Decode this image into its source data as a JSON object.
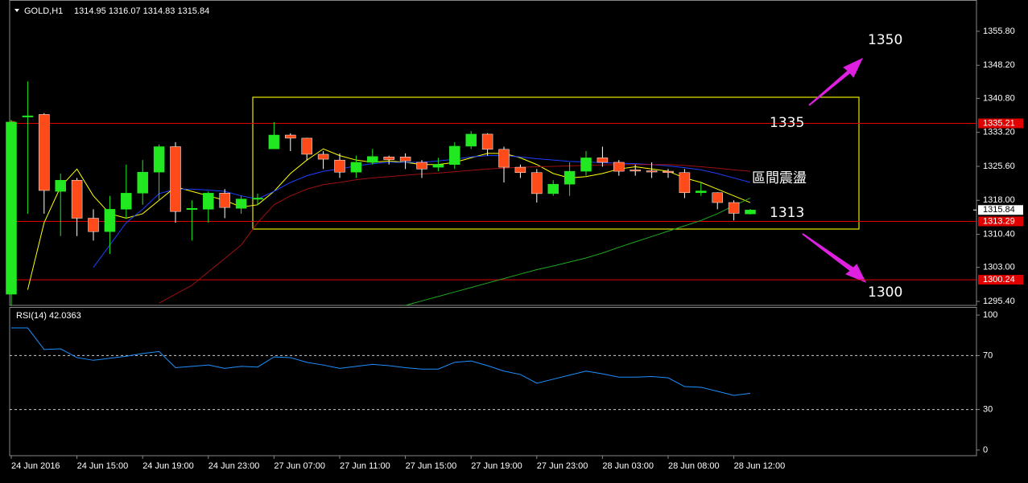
{
  "chart_data": [
    {
      "type": "candlestick",
      "title": "GOLD,H1",
      "subtitle": "1314.95 1316.07 1314.83 1315.84",
      "categories": [
        "24 Jun 2016",
        null,
        null,
        null,
        "24 Jun 15:00",
        null,
        null,
        null,
        "24 Jun 19:00",
        null,
        null,
        null,
        "24 Jun 23:00",
        null,
        null,
        null,
        "27 Jun 07:00",
        null,
        null,
        null,
        "27 Jun 11:00",
        null,
        null,
        null,
        "27 Jun 15:00",
        null,
        null,
        null,
        "27 Jun 19:00",
        null,
        null,
        null,
        "27 Jun 23:00",
        null,
        null,
        null,
        "28 Jun 03:00",
        null,
        null,
        null,
        "28 Jun 08:00",
        null,
        null,
        null,
        "28 Jun 12:00",
        null
      ],
      "open": [
        1297,
        1336.8,
        1337.2,
        1320,
        1322.5,
        1314,
        1311,
        1316,
        1319.6,
        1324.3,
        1330,
        1316,
        1316,
        1319.6,
        1316.2,
        1318.3,
        1329.5,
        1332.6,
        1331.9,
        1328.3,
        1327,
        1324.3,
        1326.5,
        1327.7,
        1327.7,
        1326.5,
        1325.4,
        1326,
        1330.1,
        1332.8,
        1329.4,
        1325.4,
        1324.2,
        1319.5,
        1321.6,
        1324.5,
        1327.5,
        1326.5,
        1324.8,
        1324.6,
        1324.5,
        1324.2,
        1319.7,
        1319.7,
        1317.5,
        1314.95
      ],
      "high": [
        1336,
        1344.6,
        1337.5,
        1324,
        1323,
        1316,
        1319,
        1326,
        1327,
        1330.5,
        1331,
        1318,
        1320,
        1320.5,
        1319,
        1319.5,
        1335.5,
        1333,
        1332,
        1329,
        1328.5,
        1328,
        1329.5,
        1328,
        1328.5,
        1327,
        1327.5,
        1331,
        1333.5,
        1333,
        1330,
        1326,
        1325,
        1322.5,
        1326.5,
        1329,
        1330,
        1327,
        1326,
        1326.5,
        1325,
        1325,
        1322,
        1319.8,
        1318,
        1316.07
      ],
      "low": [
        1294.5,
        1315,
        1315,
        1310,
        1310,
        1309,
        1306,
        1314,
        1317,
        1318,
        1313,
        1309,
        1313,
        1314,
        1315,
        1317,
        1329.5,
        1329,
        1327,
        1325,
        1323,
        1323,
        1326,
        1326,
        1325,
        1323,
        1324.5,
        1325,
        1329.5,
        1328,
        1322,
        1323,
        1317.5,
        1319,
        1319,
        1323.5,
        1325.5,
        1323.5,
        1323.5,
        1323,
        1323,
        1318.5,
        1319,
        1316,
        1313.5,
        1314.83
      ],
      "close": [
        1335.5,
        1336.9,
        1320.2,
        1322.5,
        1314,
        1311,
        1316,
        1319.6,
        1324.3,
        1330,
        1315.5,
        1316.2,
        1319.6,
        1316.4,
        1318.3,
        1318.5,
        1332.6,
        1331.9,
        1328.3,
        1327.2,
        1324.3,
        1326.5,
        1327.8,
        1327.1,
        1326.8,
        1325,
        1326,
        1330.1,
        1332.8,
        1329.4,
        1325.4,
        1324.2,
        1319.5,
        1321.6,
        1324.5,
        1327.5,
        1326.5,
        1324.5,
        1324.6,
        1324.5,
        1324.2,
        1319.7,
        1320.1,
        1317.5,
        1315.1,
        1315.84
      ],
      "up_color": "#22e822",
      "down_color": "#ff4a1a",
      "series": [
        {
          "color": "#ffff00",
          "values": [
            null,
            1298,
            1313,
            1321,
            1325,
            1319,
            1315,
            1314,
            1315,
            1318,
            1321,
            1320,
            1319,
            1318,
            1316.5,
            1317,
            1320,
            1324,
            1327,
            1329.5,
            1328,
            1327,
            1326.5,
            1326.8,
            1326.5,
            1326,
            1326,
            1326.5,
            1327.5,
            1328.5,
            1328.5,
            1327.5,
            1326,
            1324,
            1323,
            1323.3,
            1324,
            1325,
            1325.5,
            1325,
            1324.5,
            1323,
            1322,
            1320.5,
            1319,
            1317.5
          ]
        },
        {
          "color": "#1e40ff",
          "values": [
            null,
            null,
            null,
            null,
            null,
            1303,
            1308,
            1313,
            1316,
            1319.5,
            1320.5,
            1320.5,
            1320.3,
            1320,
            1319,
            1318.3,
            1320,
            1322,
            1323.5,
            1324.5,
            1325,
            1325.7,
            1326.2,
            1326.5,
            1326.5,
            1326.5,
            1326.8,
            1327.2,
            1327.7,
            1328,
            1328,
            1327.7,
            1327.3,
            1327,
            1326.7,
            1326.6,
            1326.4,
            1326.3,
            1326.2,
            1326,
            1325.7,
            1325.3,
            1324.8,
            1324,
            1323,
            1322
          ]
        },
        {
          "color": "#a01010",
          "values": [
            null,
            null,
            null,
            null,
            null,
            null,
            null,
            null,
            null,
            1295,
            1297,
            1299,
            1302,
            1305,
            1308,
            1313,
            1317,
            1319,
            1320.5,
            1321.5,
            1322,
            1322.6,
            1323,
            1323.3,
            1323.6,
            1323.9,
            1324.1,
            1324.4,
            1324.7,
            1325,
            1325.2,
            1325.4,
            1325.5,
            1325.6,
            1325.7,
            1325.8,
            1325.9,
            1326,
            1326,
            1326,
            1326,
            1325.8,
            1325.5,
            1325.2,
            1324.8,
            1324.5
          ]
        },
        {
          "color": "#1fa81f",
          "values": [
            null,
            null,
            null,
            null,
            null,
            null,
            null,
            null,
            null,
            null,
            null,
            null,
            null,
            null,
            null,
            null,
            null,
            null,
            null,
            null,
            null,
            null,
            null,
            null,
            1294.5,
            1295.5,
            1296.5,
            1297.5,
            1298.5,
            1299.5,
            1300.5,
            1301.5,
            1302.5,
            1303.3,
            1304.2,
            1305.1,
            1306.2,
            1307.5,
            1308.7,
            1309.9,
            1311.1,
            1312.3,
            1313.5,
            1315,
            1316.8,
            1318.5
          ]
        }
      ],
      "ylim": [
        1294.5,
        1362.8
      ],
      "yticks": [
        {
          "value": 1355.8,
          "label": "1355.80"
        },
        {
          "value": 1348.2,
          "label": "1348.20"
        },
        {
          "value": 1340.8,
          "label": "1340.80"
        },
        {
          "value": 1333.2,
          "label": "1333.20"
        },
        {
          "value": 1325.6,
          "label": "1325.60"
        },
        {
          "value": 1318,
          "label": "1318.00"
        },
        {
          "value": 1310.4,
          "label": "1310.40"
        },
        {
          "value": 1303,
          "label": "1303.00"
        },
        {
          "value": 1295.4,
          "label": "1295.40"
        }
      ],
      "hlines": [
        {
          "value": 1335.21,
          "label": "1335.21"
        },
        {
          "value": 1313.29,
          "label": "1313.29"
        },
        {
          "value": 1300.24,
          "label": "1300.24"
        }
      ],
      "hline_color": "#e00000",
      "price_tag": {
        "value": 1315.84,
        "label": "1315.84"
      },
      "annotations": [
        "1350",
        "1335",
        "區間震盪",
        "1313",
        "1300"
      ]
    },
    {
      "type": "line",
      "title": "RSI(14) 42.0363",
      "values": [
        90.5,
        90.5,
        74.5,
        75,
        68.5,
        66.5,
        68,
        69.5,
        71.5,
        73,
        61,
        62,
        63,
        60.5,
        62,
        61.5,
        69,
        68.5,
        65,
        63,
        60.5,
        62,
        63.5,
        62.5,
        61,
        60,
        60,
        65,
        66,
        62.5,
        58.5,
        56,
        49.5,
        52.5,
        55.5,
        58.5,
        56.5,
        54,
        54,
        54.5,
        53.5,
        47,
        46.5,
        43.5,
        40.5,
        42.0363
      ],
      "color": "#1e90ff",
      "ylim": [
        -4.2,
        105.4
      ],
      "yticks": [
        0,
        30,
        70,
        100
      ],
      "levels": [
        30,
        70
      ]
    }
  ]
}
